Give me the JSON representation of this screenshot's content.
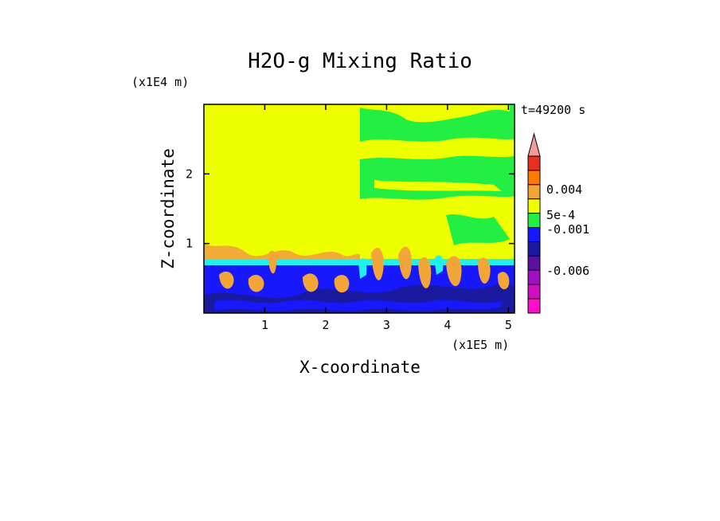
{
  "chart_data": {
    "type": "heatmap",
    "title": "H2O-g Mixing Ratio",
    "xlabel": "X-coordinate",
    "ylabel": "Z-coordinate",
    "x_unit": "(x1E5 m)",
    "y_unit": "(x1E4 m)",
    "time_label": "t=49200 s",
    "xlim": [
      0,
      5.1
    ],
    "ylim": [
      0,
      3
    ],
    "x_ticks": [
      1,
      2,
      3,
      4,
      5
    ],
    "y_ticks": [
      1,
      2
    ],
    "colorbar": {
      "labels": [
        {
          "text": "0.004",
          "value": 0.004
        },
        {
          "text": "5e-4",
          "value": 0.0005
        },
        {
          "text": "-0.001",
          "value": -0.001
        },
        {
          "text": "-0.006",
          "value": -0.006
        }
      ],
      "levels_top_to_bottom": [
        {
          "color": "#f09a9a"
        },
        {
          "color": "#e83020"
        },
        {
          "color": "#ff7a00"
        },
        {
          "color": "#f2a63a"
        },
        {
          "color": "#eeff00"
        },
        {
          "color": "#22ee44"
        },
        {
          "color": "#1818ff"
        },
        {
          "color": "#1a1aa0"
        },
        {
          "color": "#5a10a0"
        },
        {
          "color": "#a010c0"
        },
        {
          "color": "#d010c0"
        },
        {
          "color": "#ff10c8"
        }
      ]
    },
    "regions": [
      {
        "name": "upper-left moist layer",
        "color": "#eeff00"
      },
      {
        "name": "upper-right layered structure",
        "color": "#22ee44"
      },
      {
        "name": "boundary layer",
        "color": "#1818ff"
      },
      {
        "name": "convective plumes",
        "color": "#f2a63a"
      }
    ]
  }
}
